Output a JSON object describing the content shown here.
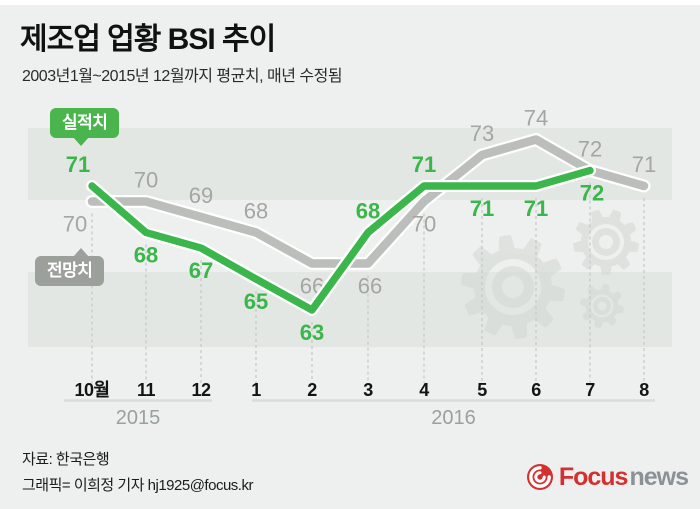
{
  "header": {
    "title": "제조업 업황 BSI 추이",
    "subtitle": "2003년1월~2015년 12월까지 평균치, 매년 수정됨"
  },
  "badges": {
    "actual": "실적치",
    "forecast": "전망치"
  },
  "chart_data": {
    "type": "line",
    "title": "제조업 업황 BSI 추이",
    "x_categories": [
      "10월",
      "11",
      "12",
      "1",
      "2",
      "3",
      "4",
      "5",
      "6",
      "7",
      "8"
    ],
    "year_groups": [
      {
        "label": "2015",
        "start": 0,
        "end": 2
      },
      {
        "label": "2016",
        "start": 3,
        "end": 10
      }
    ],
    "series": [
      {
        "name": "전망치",
        "color": "#bbbebb",
        "values": [
          70,
          70,
          69,
          68,
          66,
          66,
          70,
          73,
          74,
          72,
          71
        ],
        "label_side": [
          "below",
          "above",
          "above",
          "above",
          "below",
          "below",
          "below",
          "above",
          "above",
          "above",
          "above"
        ]
      },
      {
        "name": "실적치",
        "color": "#3ab64a",
        "values": [
          71,
          68,
          67,
          65,
          63,
          68,
          71,
          71,
          71,
          72
        ],
        "label_side": [
          "above",
          "below",
          "below",
          "below",
          "below",
          "above",
          "above",
          "below",
          "below",
          "below"
        ]
      }
    ],
    "ylim": [
      60,
      78
    ],
    "grid": "dashed-vertical",
    "legend_position": "badges-left"
  },
  "footer": {
    "source": "자료: 한국은행",
    "credit": "그래픽= 이희정 기자 hj1925@focus.kr",
    "logo_focus": "Focus",
    "logo_news": "news"
  },
  "colors": {
    "background": "#edf0ee",
    "stripe": "#e3e7e4",
    "actual_green": "#3ab64a",
    "forecast_gray": "#bbbebb",
    "value_label_gray": "#a3a6a3",
    "axis_black": "#141414",
    "year_gray": "#9aa09b",
    "gridline": "#c7cbc8",
    "gear_watermark": "#d3d7d4",
    "logo_red": "#d53030",
    "logo_gray": "#8b9196"
  }
}
